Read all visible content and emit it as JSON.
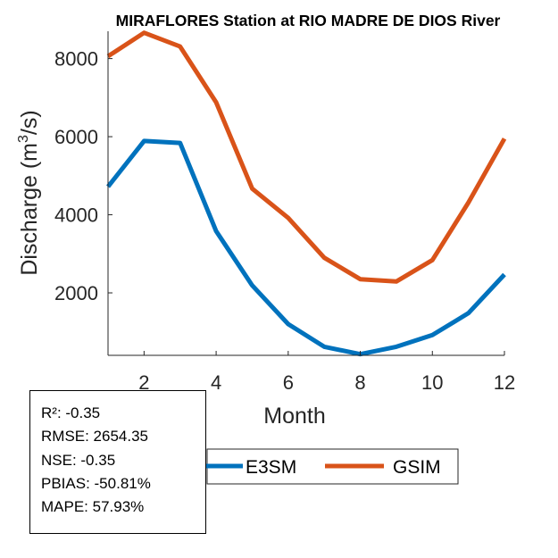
{
  "chart_data": {
    "type": "line",
    "title": "MIRAFLORES  Station at  RIO MADRE DE DIOS  River",
    "xlabel": "Month",
    "ylabel_main": "Discharge (m",
    "ylabel_sup": "3",
    "ylabel_tail": "/s)",
    "xlim": [
      1,
      12
    ],
    "ylim": [
      400,
      8700
    ],
    "xticks": [
      2,
      4,
      6,
      8,
      10,
      12
    ],
    "yticks": [
      2000,
      4000,
      6000,
      8000
    ],
    "x": [
      1,
      2,
      3,
      4,
      5,
      6,
      7,
      8,
      9,
      10,
      11,
      12
    ],
    "series": [
      {
        "name": "E3SM",
        "color": "#0072BD",
        "values": [
          4720,
          5890,
          5840,
          3580,
          2190,
          1200,
          620,
          430,
          620,
          920,
          1480,
          2470
        ]
      },
      {
        "name": "GSIM",
        "color": "#D95319",
        "values": [
          8060,
          8660,
          8310,
          6880,
          4670,
          3920,
          2900,
          2350,
          2290,
          2840,
          4310,
          5950
        ]
      }
    ],
    "legend_location": "bottom"
  },
  "stats": [
    "R²: -0.35",
    "RMSE: 2654.35",
    "NSE: -0.35",
    "PBIAS: -50.81%",
    "MAPE: 57.93%"
  ]
}
